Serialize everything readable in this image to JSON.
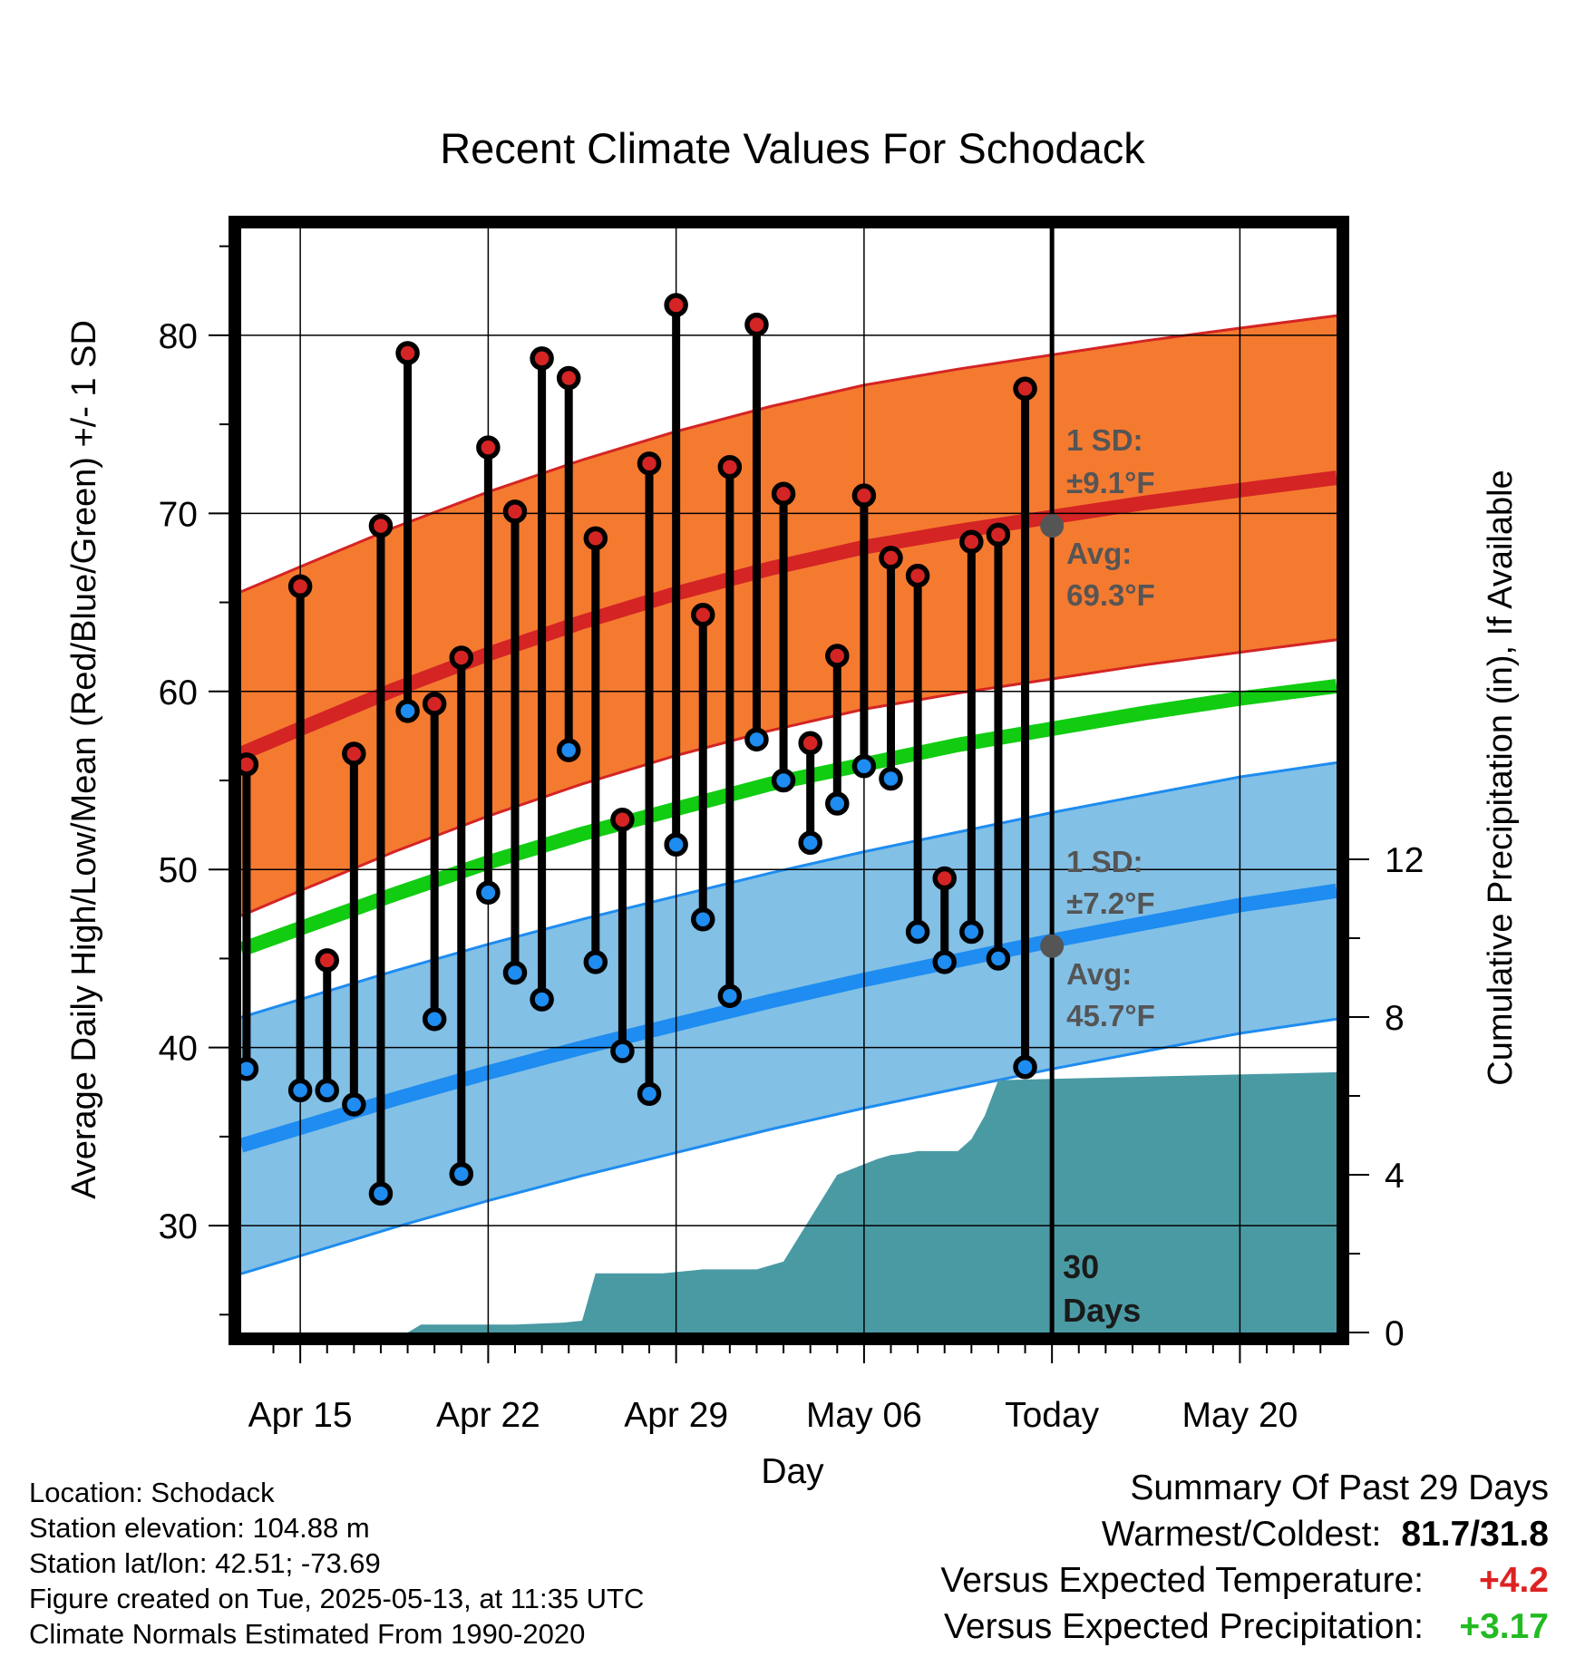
{
  "title": "Recent Climate Values For Schodack",
  "y_label_left": "Average Daily High/Low/Mean (Red/Blue/Green) +/- 1 SD",
  "y_label_right": "Cumulative Precipitation (in), If Available",
  "x_label": "Day",
  "x_ticks": [
    "Apr 15",
    "Apr 22",
    "Apr 29",
    "May 06",
    "Today",
    "May 20"
  ],
  "y_ticks_left": [
    "30",
    "40",
    "50",
    "60",
    "70",
    "80"
  ],
  "y_ticks_right": [
    "0",
    "4",
    "8",
    "12"
  ],
  "annotations": {
    "high_sd_l1": "1 SD:",
    "high_sd_l2": "±9.1°F",
    "high_avg_l1": "Avg:",
    "high_avg_l2": "69.3°F",
    "low_sd_l1": "1 SD:",
    "low_sd_l2": "±7.2°F",
    "low_avg_l1": "Avg:",
    "low_avg_l2": "45.7°F",
    "days_l1": "30",
    "days_l2": "Days"
  },
  "info": {
    "location": "Location: Schodack",
    "elevation": "Station elevation: 104.88 m",
    "latlon": "Station lat/lon: 42.51; -73.69",
    "created": "Figure created on Tue, 2025-05-13, at 11:35 UTC",
    "normals": "Climate Normals Estimated From 1990-2020"
  },
  "summary": {
    "heading": "Summary Of Past 29 Days",
    "warm_cold_label": "Warmest/Coldest:",
    "warm_cold_value": "81.7/31.8",
    "temp_label": "Versus Expected Temperature:",
    "temp_value": "+4.2",
    "precip_label": "Versus Expected Precipitation:",
    "precip_value": "+3.17"
  },
  "colors": {
    "high_band": "#f47a30",
    "high_line": "#d42424",
    "low_band": "#82c0e6",
    "low_line": "#1e8cf0",
    "mean_line": "#11cc11",
    "precip_fill": "#4a9aa4",
    "high_dot": "#d42424",
    "low_dot": "#1e8cf0"
  },
  "chart_data": {
    "type": "line",
    "x_days_labels": [
      "Apr 15",
      "Apr 22",
      "Apr 29",
      "May 06",
      "Today",
      "May 20"
    ],
    "x_range_days_from_apr15": [
      -2.2,
      38.6
    ],
    "ylim_left": [
      24,
      86
    ],
    "ylim_right": [
      0,
      28
    ],
    "days_from_apr15": [
      -2,
      0,
      1,
      2,
      3,
      4,
      5,
      6,
      7,
      8,
      9,
      10,
      11,
      12,
      13,
      14,
      15,
      16,
      17,
      18,
      19,
      20,
      21,
      22,
      23,
      24,
      25,
      26,
      27
    ],
    "daily_high": [
      55.9,
      65.9,
      44.9,
      56.5,
      69.3,
      79.0,
      59.3,
      61.9,
      73.7,
      70.1,
      78.7,
      77.6,
      68.6,
      52.8,
      72.8,
      81.7,
      64.3,
      72.6,
      80.6,
      71.1,
      57.1,
      62.0,
      71.0,
      67.5,
      66.5,
      49.5,
      68.4,
      68.8,
      77.0
    ],
    "daily_low": [
      38.8,
      37.6,
      37.6,
      36.8,
      31.8,
      58.9,
      41.6,
      32.9,
      48.7,
      44.2,
      42.7,
      56.7,
      44.8,
      39.8,
      37.4,
      51.4,
      47.2,
      42.9,
      57.3,
      55.0,
      51.5,
      53.7,
      55.8,
      55.1,
      46.5,
      44.8,
      46.5,
      45.0,
      38.9
    ],
    "normals": {
      "x": [
        -2.2,
        0,
        3.5,
        7,
        10.5,
        14,
        17.5,
        21,
        24.5,
        28,
        31.5,
        35,
        38.6
      ],
      "high_avg": [
        56.5,
        57.9,
        60.1,
        62.1,
        63.9,
        65.5,
        66.9,
        68.1,
        69.0,
        69.8,
        70.6,
        71.3,
        72.0
      ],
      "high_sd": 9.1,
      "low_avg": [
        34.5,
        35.5,
        37.1,
        38.6,
        40.0,
        41.3,
        42.6,
        43.8,
        44.9,
        46.0,
        47.0,
        48.0,
        48.8
      ],
      "low_sd": 7.2,
      "mean_avg": [
        45.5,
        46.7,
        48.6,
        50.4,
        52.0,
        53.4,
        54.8,
        55.9,
        57.0,
        57.9,
        58.8,
        59.6,
        60.3
      ]
    },
    "precipitation_cumulative": {
      "x": [
        -2.2,
        4.0,
        4.5,
        8.0,
        9.8,
        10.5,
        11.0,
        13.5,
        15.0,
        17.0,
        18.0,
        20.0,
        21.5,
        21.5,
        22.0,
        22.6,
        23.0,
        24.5,
        25.0,
        25.5,
        26.0,
        38.6
      ],
      "y": [
        0,
        0,
        0.2,
        0.2,
        0.25,
        0.3,
        1.5,
        1.5,
        1.6,
        1.6,
        1.8,
        4.0,
        4.4,
        4.4,
        4.5,
        4.55,
        4.6,
        4.6,
        4.9,
        5.5,
        6.4,
        6.6
      ]
    },
    "today_marker": {
      "x_label": "Today",
      "high_avg": 69.3,
      "low_avg": 45.7
    }
  }
}
